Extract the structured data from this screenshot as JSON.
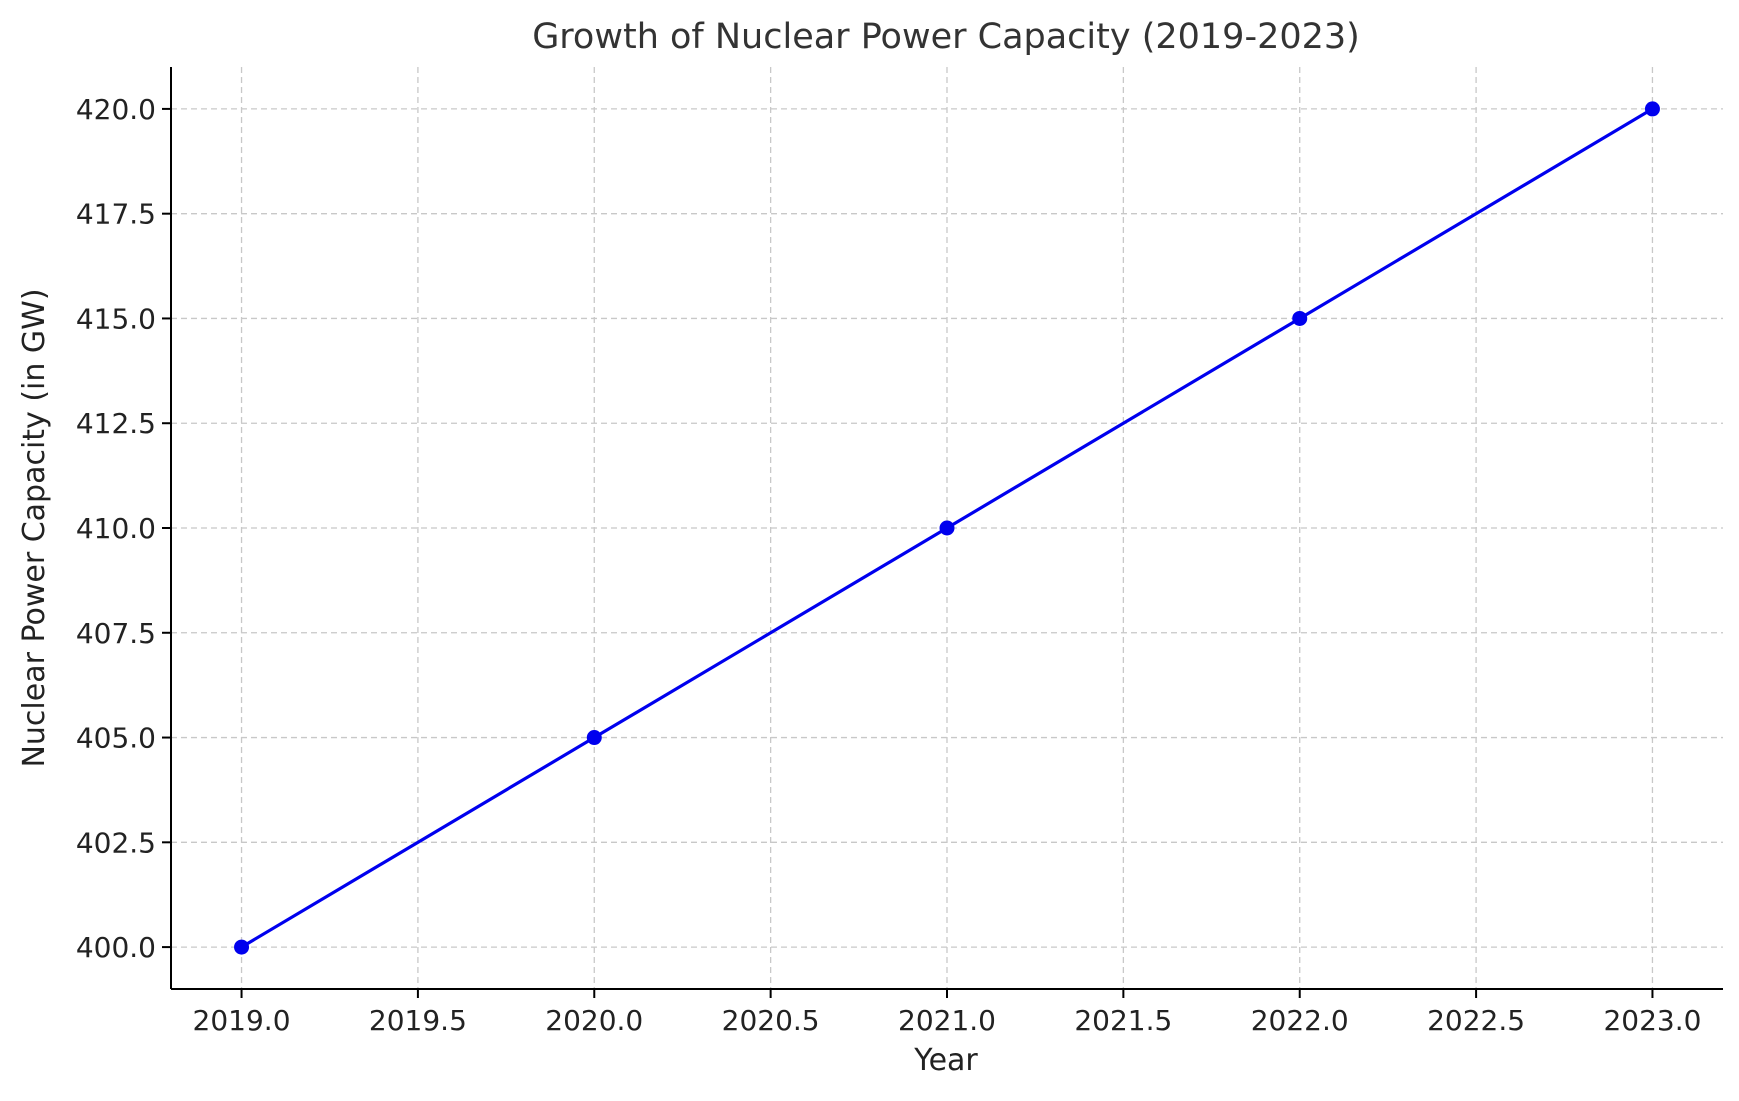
{
  "chart_data": {
    "type": "line",
    "title": "Growth of Nuclear Power Capacity (2019-2023)",
    "xlabel": "Year",
    "ylabel": "Nuclear Power Capacity (in GW)",
    "x": [
      2019,
      2020,
      2021,
      2022,
      2023
    ],
    "series": [
      {
        "values": [
          400,
          405,
          410,
          415,
          420
        ],
        "color": "#0000ee",
        "marker": "circle"
      }
    ],
    "xlim": [
      2018.8,
      2023.2
    ],
    "ylim": [
      399,
      421
    ],
    "x_ticks": [
      2019.0,
      2019.5,
      2020.0,
      2020.5,
      2021.0,
      2021.5,
      2022.0,
      2022.5,
      2023.0
    ],
    "x_tick_labels": [
      "2019.0",
      "2019.5",
      "2020.0",
      "2020.5",
      "2021.0",
      "2021.5",
      "2022.0",
      "2022.5",
      "2023.0"
    ],
    "y_ticks": [
      400.0,
      402.5,
      405.0,
      407.5,
      410.0,
      412.5,
      415.0,
      417.5,
      420.0
    ],
    "y_tick_labels": [
      "400.0",
      "402.5",
      "405.0",
      "407.5",
      "410.0",
      "412.5",
      "415.0",
      "417.5",
      "420.0"
    ],
    "grid": true,
    "grid_style": "dashed",
    "legend": "none"
  }
}
